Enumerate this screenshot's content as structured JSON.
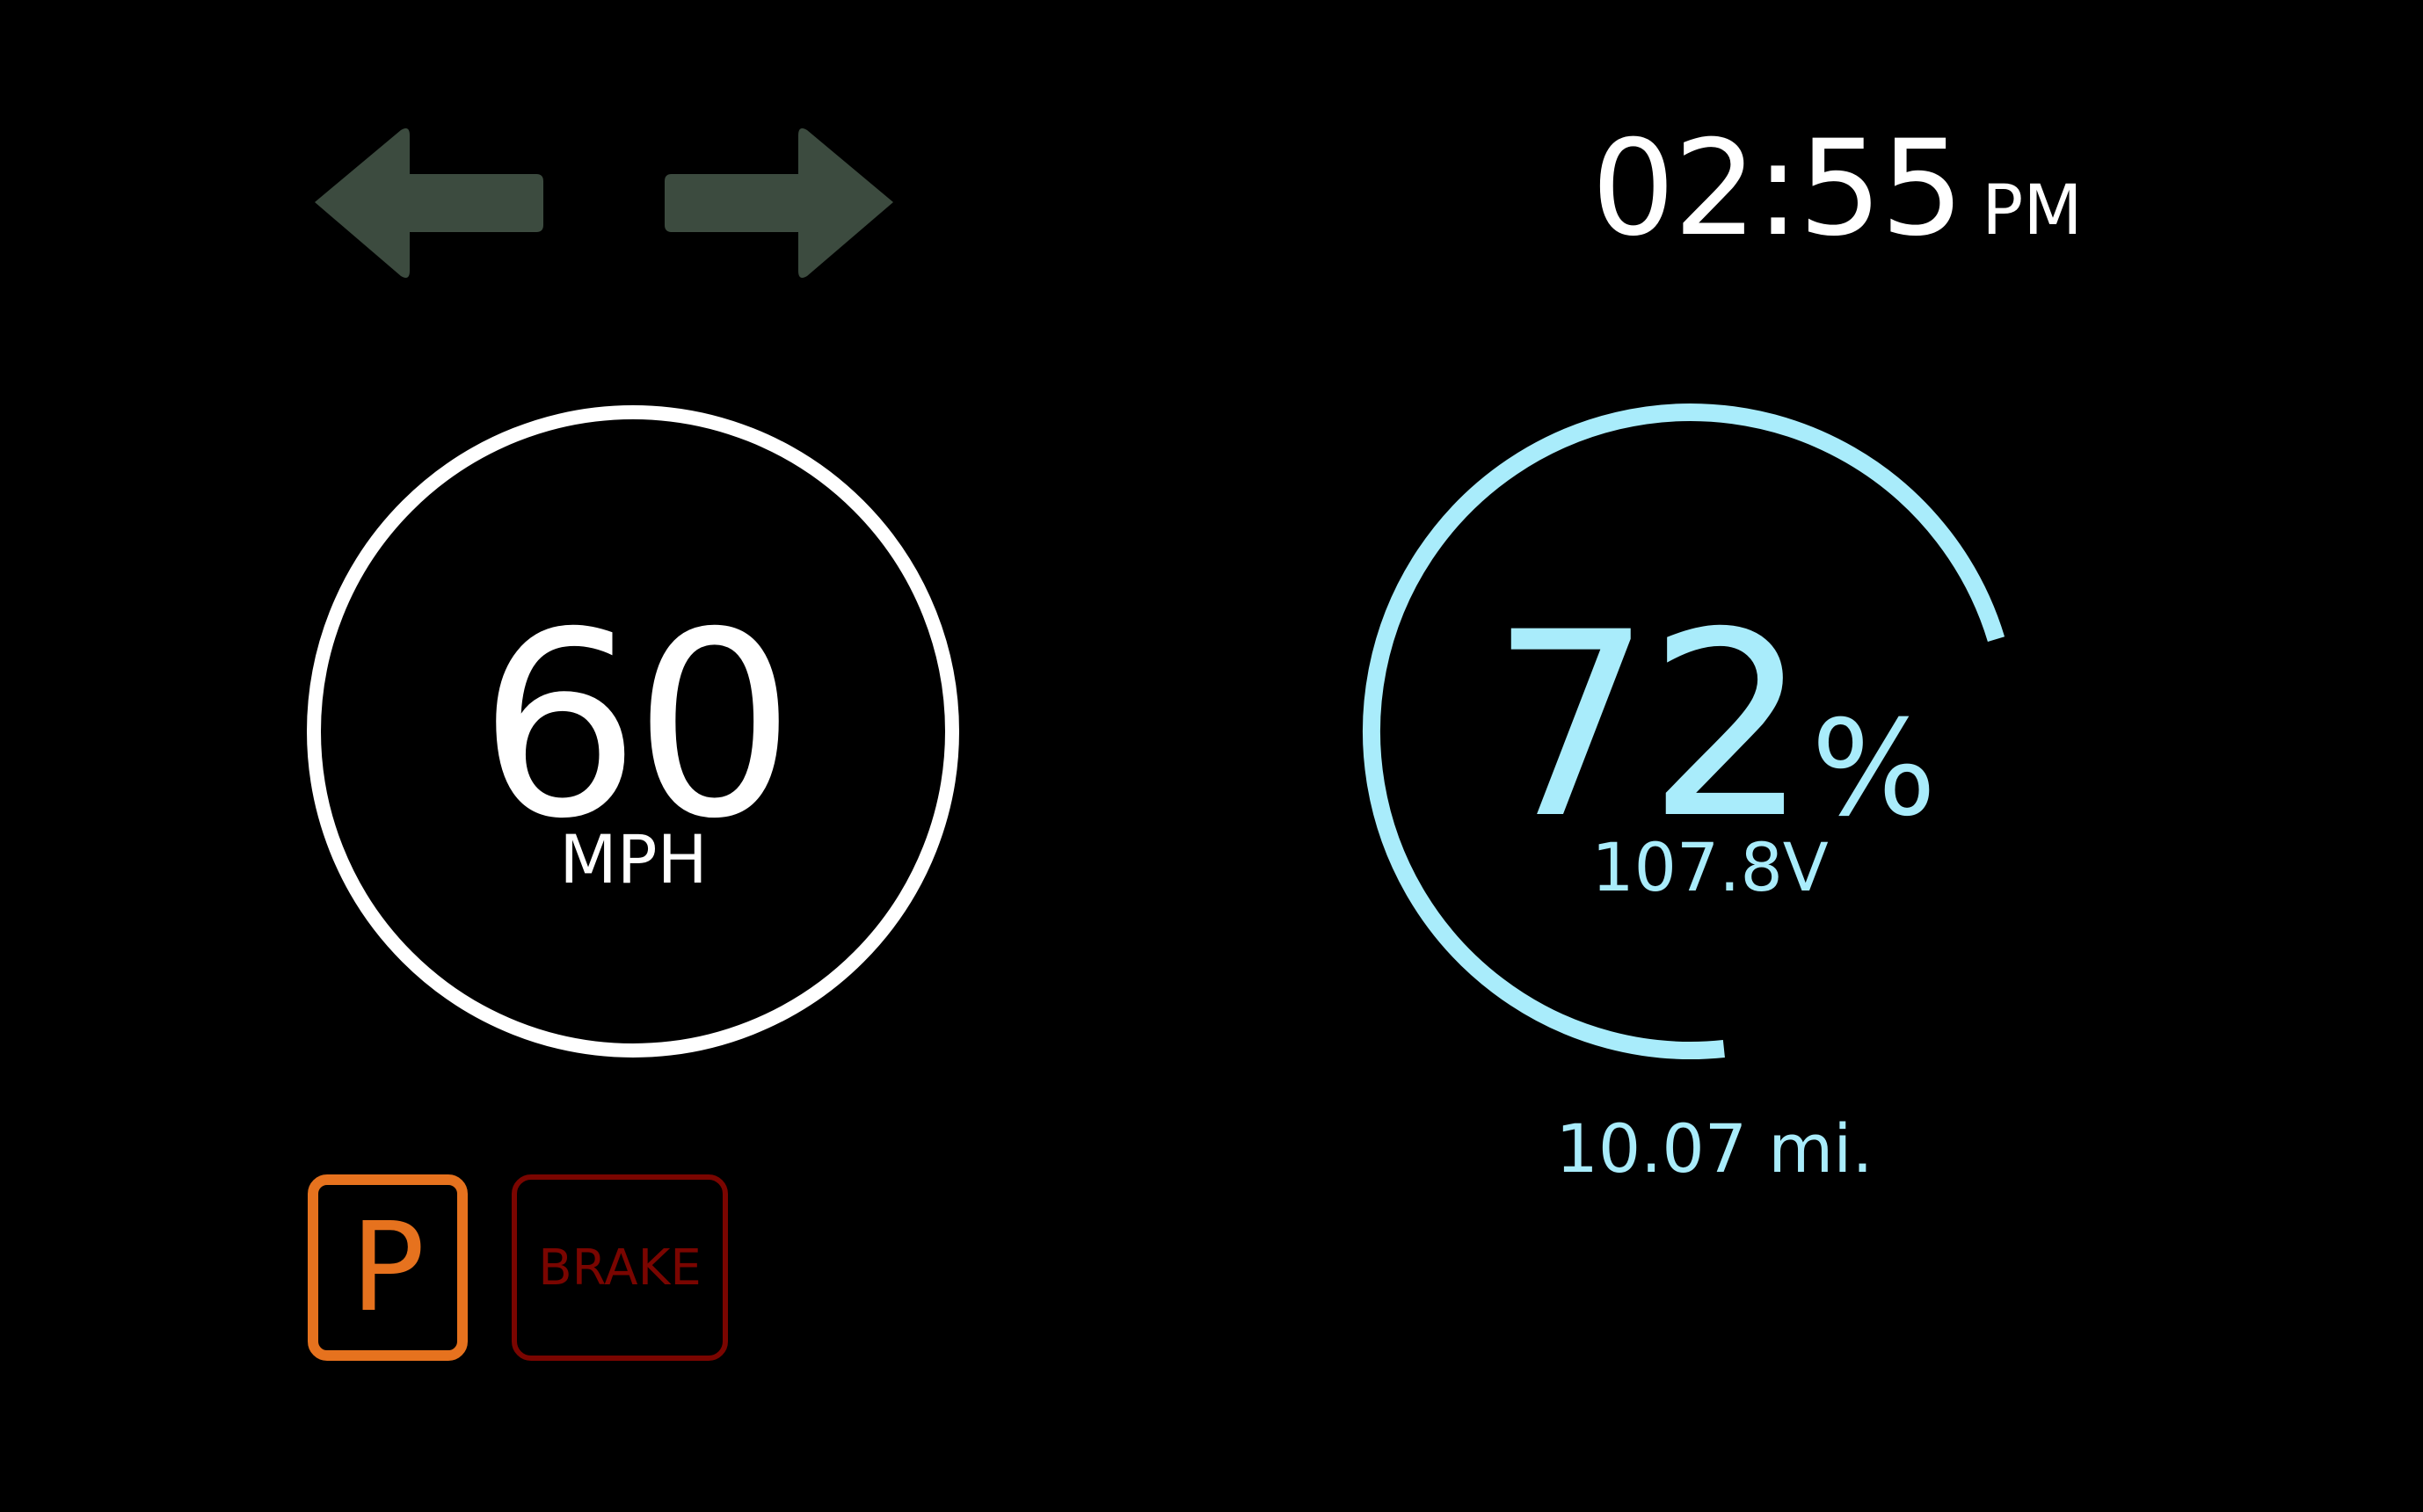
{
  "colors": {
    "background": "#000000",
    "turn_signal_inactive": "#3c4b3f",
    "speed": "#ffffff",
    "battery": "#a9ecfb",
    "park": "#e6721e",
    "brake": "#7a0500"
  },
  "turn_signals": {
    "left": {
      "icon": "left-arrow-icon",
      "active": false
    },
    "right": {
      "icon": "right-arrow-icon",
      "active": false
    }
  },
  "clock": {
    "time": "02:55",
    "ampm": "PM"
  },
  "speedometer": {
    "value": "60",
    "unit": "MPH"
  },
  "battery": {
    "percent": "72",
    "percent_symbol": "%",
    "level_fraction": 0.72,
    "voltage": "107.8V",
    "range": "10.07 mi."
  },
  "indicators": {
    "park": {
      "label": "P",
      "active": true
    },
    "brake": {
      "label": "BRAKE",
      "active": false
    }
  }
}
